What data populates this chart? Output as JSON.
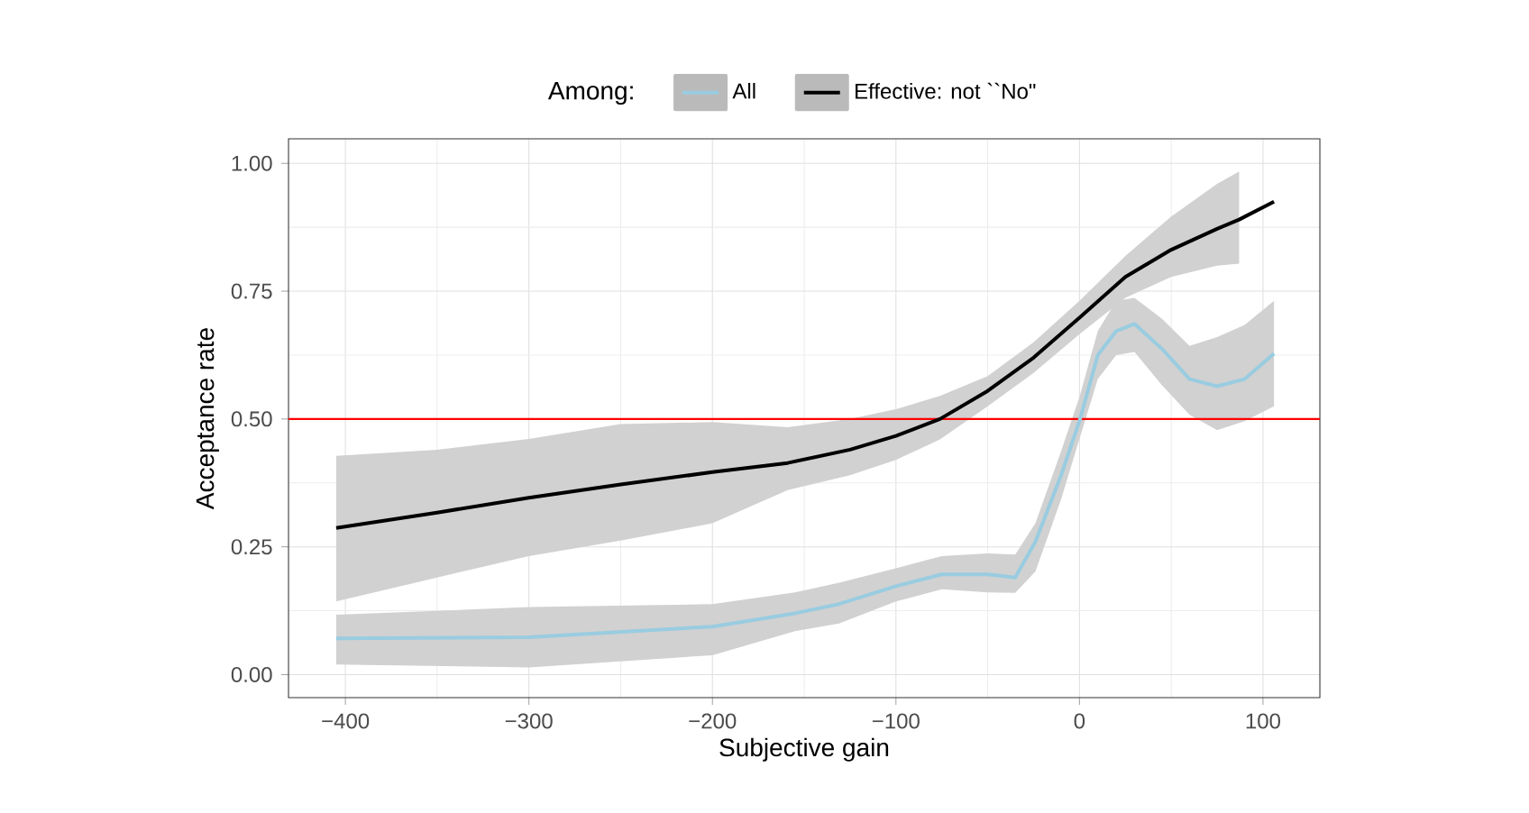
{
  "chart_data": {
    "type": "line",
    "xlabel": "Subjective gain",
    "ylabel": "Acceptance rate",
    "legend_title": "Among:",
    "legend": "top",
    "grid": true,
    "xlim": [
      -431,
      131
    ],
    "ylim": [
      -0.045,
      1.048
    ],
    "xticks": [
      {
        "value": -400,
        "label": "−400"
      },
      {
        "value": -300,
        "label": "−300"
      },
      {
        "value": -200,
        "label": "−200"
      },
      {
        "value": -100,
        "label": "−100"
      },
      {
        "value": 0,
        "label": "0"
      },
      {
        "value": 100,
        "label": "100"
      }
    ],
    "yticks": [
      {
        "value": 0,
        "label": "0.00"
      },
      {
        "value": 0.25,
        "label": "0.25"
      },
      {
        "value": 0.5,
        "label": "0.50"
      },
      {
        "value": 0.75,
        "label": "0.75"
      },
      {
        "value": 1,
        "label": "1.00"
      }
    ],
    "ref_lines": [
      {
        "axis": "y",
        "value": 0.5,
        "color": "#ff0000"
      }
    ],
    "series": [
      {
        "name": "All",
        "color": "#99cce0",
        "x": [
          -405,
          -300,
          -200,
          -155,
          -131,
          -100,
          -75,
          -50,
          -35,
          -24,
          -10,
          0,
          10,
          20,
          30,
          45,
          60,
          75,
          90,
          106
        ],
        "values": [
          0.071,
          0.073,
          0.094,
          0.12,
          0.138,
          0.173,
          0.196,
          0.196,
          0.19,
          0.26,
          0.39,
          0.496,
          0.625,
          0.672,
          0.686,
          0.637,
          0.578,
          0.564,
          0.578,
          0.628
        ],
        "lower": [
          0.02,
          0.014,
          0.038,
          0.085,
          0.1,
          0.143,
          0.167,
          0.161,
          0.16,
          0.202,
          0.343,
          0.461,
          0.578,
          0.625,
          0.631,
          0.566,
          0.508,
          0.478,
          0.496,
          0.525
        ],
        "upper": [
          0.117,
          0.132,
          0.138,
          0.161,
          0.18,
          0.208,
          0.232,
          0.237,
          0.235,
          0.296,
          0.437,
          0.543,
          0.672,
          0.731,
          0.737,
          0.696,
          0.643,
          0.66,
          0.684,
          0.731
        ]
      },
      {
        "name": "Effective: not ``No\"",
        "color": "#000000",
        "x": [
          -405,
          -350,
          -300,
          -250,
          -200,
          -159,
          -125,
          -100,
          -76,
          -50,
          -25,
          0,
          25,
          50,
          75,
          87,
          106
        ],
        "values": [
          0.287,
          0.317,
          0.346,
          0.372,
          0.396,
          0.414,
          0.44,
          0.467,
          0.5,
          0.555,
          0.62,
          0.698,
          0.778,
          0.831,
          0.872,
          0.89,
          0.925
        ],
        "lower": [
          0.143,
          0.19,
          0.232,
          0.262,
          0.296,
          0.361,
          0.39,
          0.42,
          0.46,
          0.525,
          0.59,
          0.666,
          0.737,
          0.778,
          0.8,
          0.804,
          null
        ],
        "upper": [
          0.428,
          0.44,
          0.461,
          0.49,
          0.494,
          0.484,
          0.5,
          0.519,
          0.545,
          0.584,
          0.65,
          0.731,
          0.819,
          0.896,
          0.96,
          0.984,
          null
        ]
      }
    ]
  }
}
